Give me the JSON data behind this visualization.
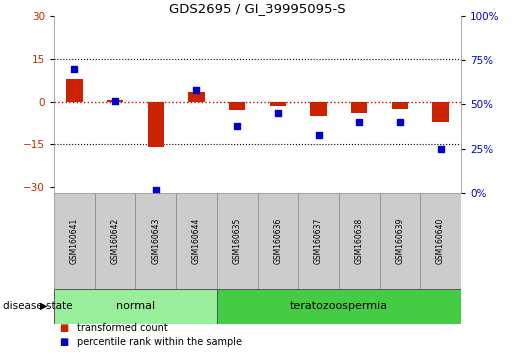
{
  "title": "GDS2695 / GI_39995095-S",
  "samples": [
    "GSM160641",
    "GSM160642",
    "GSM160643",
    "GSM160644",
    "GSM160635",
    "GSM160636",
    "GSM160637",
    "GSM160638",
    "GSM160639",
    "GSM160640"
  ],
  "transformed_count": [
    8.0,
    0.5,
    -16.0,
    3.5,
    -3.0,
    -1.5,
    -5.0,
    -4.0,
    -2.5,
    -7.0
  ],
  "percentile_rank": [
    70.0,
    52.0,
    1.5,
    58.0,
    38.0,
    45.0,
    33.0,
    40.0,
    40.0,
    25.0
  ],
  "disease_state_groups": [
    {
      "label": "normal",
      "start": 0,
      "end": 4,
      "color": "#99ee99"
    },
    {
      "label": "teratozoospermia",
      "start": 4,
      "end": 10,
      "color": "#44cc44"
    }
  ],
  "ylim_left": [
    -32,
    30
  ],
  "ylim_right": [
    0,
    100
  ],
  "yticks_left": [
    -30,
    -15,
    0,
    15,
    30
  ],
  "yticks_right": [
    0,
    25,
    50,
    75,
    100
  ],
  "bar_color": "#cc2200",
  "dot_color": "#0000cc",
  "hline_color": "#cc0000",
  "grid_color": "#000000",
  "grid_levels": [
    15,
    -15
  ],
  "background_color": "#ffffff",
  "label_transformed": "transformed count",
  "label_percentile": "percentile rank within the sample",
  "disease_state_label": "disease state",
  "sample_bg_color": "#cccccc",
  "normal_color": "#99ee99",
  "disease_color": "#44cc44"
}
